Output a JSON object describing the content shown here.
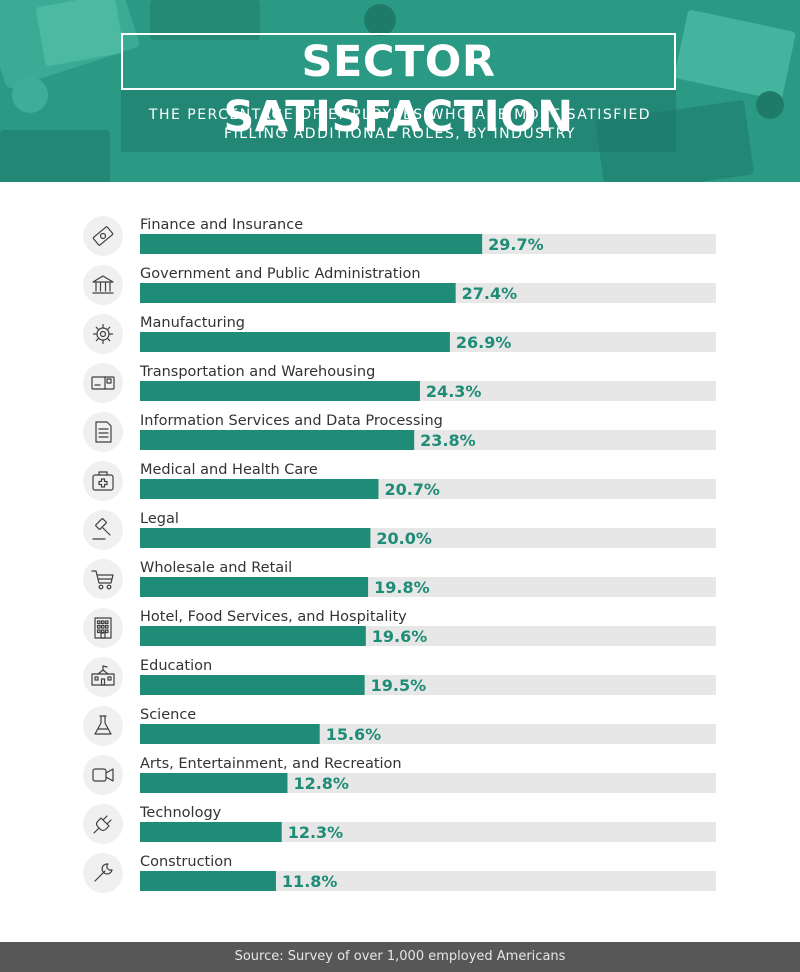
{
  "header": {
    "title": "SECTOR SATISFACTION",
    "subtitle_line1": "THE PERCENTAGE OF EMPLOYEES WHO ARE MOST SATISFIED",
    "subtitle_line2": "FILLING ADDITIONAL ROLES, BY INDUSTRY",
    "background_color": "#2a9a85"
  },
  "colors": {
    "bar": "#1e8c77",
    "track": "#e7e7e7",
    "value_label": "#1e8c77",
    "icon_circle": "#f0f0f0",
    "icon_stroke": "#3f3f3f"
  },
  "chart_data": {
    "type": "bar",
    "orientation": "horizontal",
    "categories": [
      "Finance and Insurance",
      "Government and Public Administration",
      "Manufacturing",
      "Transportation and Warehousing",
      "Information Services and Data Processing",
      "Medical and Health Care",
      "Legal",
      "Wholesale and Retail",
      "Hotel, Food Services, and Hospitality",
      "Education",
      "Science",
      "Arts, Entertainment, and Recreation",
      "Technology",
      "Construction"
    ],
    "values": [
      29.7,
      27.4,
      26.9,
      24.3,
      23.8,
      20.7,
      20.0,
      19.8,
      19.6,
      19.5,
      15.6,
      12.8,
      12.3,
      11.8
    ],
    "value_labels": [
      "29.7%",
      "27.4%",
      "26.9%",
      "24.3%",
      "23.8%",
      "20.7%",
      "20.0%",
      "19.8%",
      "19.6%",
      "19.5%",
      "15.6%",
      "12.8%",
      "12.3%",
      "11.8%"
    ],
    "icons": [
      "money-icon",
      "government-building-icon",
      "gear-icon",
      "delivery-truck-icon",
      "document-icon",
      "first-aid-kit-icon",
      "gavel-icon",
      "shopping-cart-icon",
      "hotel-icon",
      "school-icon",
      "flask-icon",
      "video-camera-icon",
      "plug-icon",
      "wrench-icon"
    ],
    "xlim": [
      0,
      50
    ],
    "unit": "%",
    "grid": false,
    "legend": "none"
  },
  "footer": {
    "source": "Source: Survey of over 1,000 employed Americans"
  }
}
